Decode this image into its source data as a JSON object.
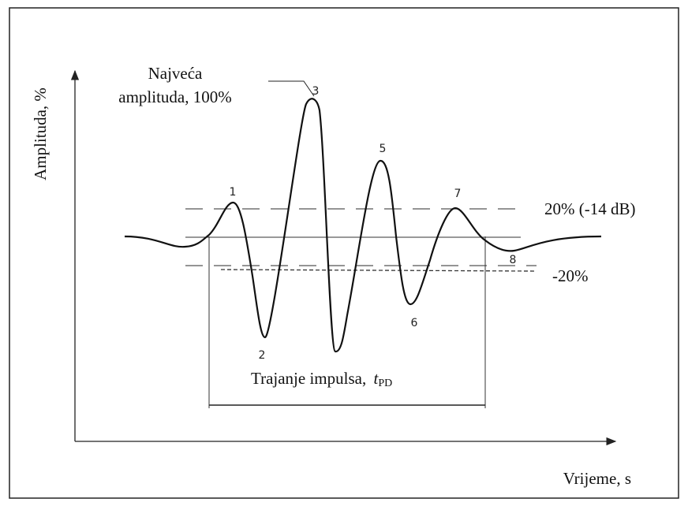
{
  "axis": {
    "y_label": "Amplituda, %",
    "x_label": "Vrijeme, s"
  },
  "annotations": {
    "peak_line1": "Najveća",
    "peak_line2": "amplituda, 100%",
    "upper": "20% (-14 dB)",
    "lower": "-20%",
    "duration": "Trajanje impulsa,",
    "duration_symbol": "t",
    "duration_subscript": "PD"
  },
  "points": [
    "1",
    "2",
    "3",
    "5",
    "6",
    "7",
    "8"
  ]
}
